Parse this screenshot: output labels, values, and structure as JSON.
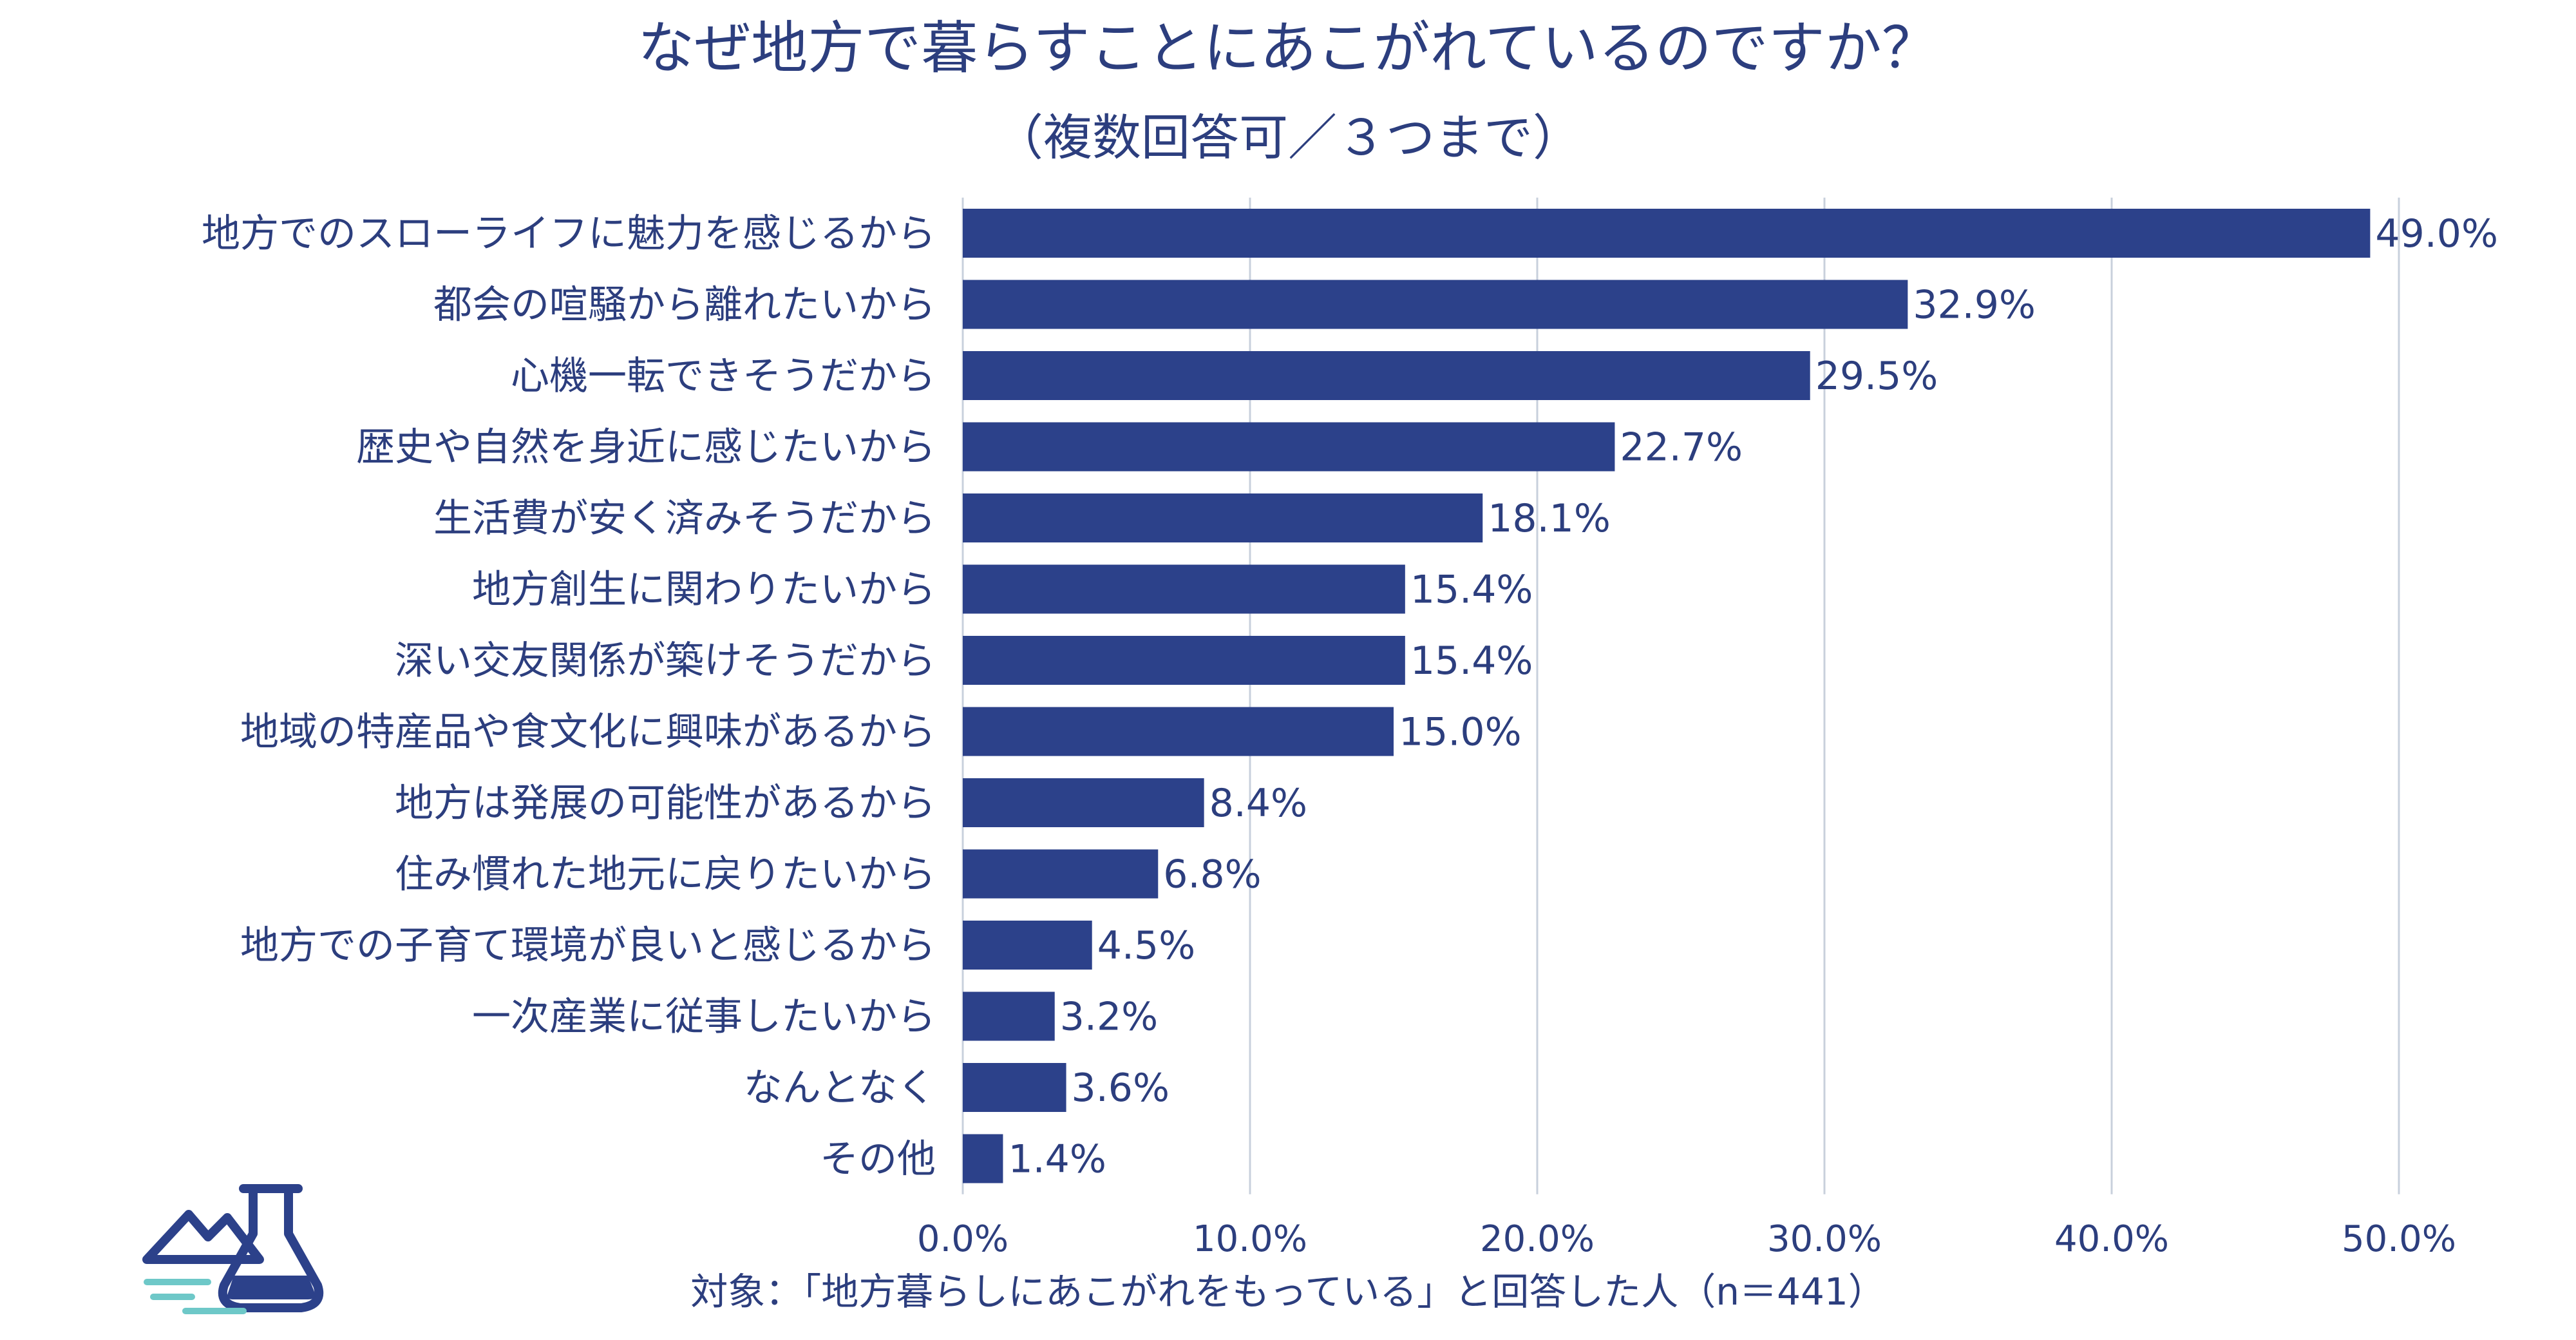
{
  "chart_data": {
    "type": "bar",
    "orientation": "horizontal",
    "title": "なぜ地方で暮らすことにあこがれているのですか？",
    "subtitle": "（複数回答可／３つまで）",
    "categories": [
      "地方でのスローライフに魅力を感じるから",
      "都会の喧騒から離れたいから",
      "心機一転できそうだから",
      "歴史や自然を身近に感じたいから",
      "生活費が安く済みそうだから",
      "地方創生に関わりたいから",
      "深い交友関係が築けそうだから",
      "地域の特産品や食文化に興味があるから",
      "地方は発展の可能性があるから",
      "住み慣れた地元に戻りたいから",
      "地方での子育て環境が良いと感じるから",
      "一次産業に従事したいから",
      "なんとなく",
      "その他"
    ],
    "values": [
      49.0,
      32.9,
      29.5,
      22.7,
      18.1,
      15.4,
      15.4,
      15.0,
      8.4,
      6.8,
      4.5,
      3.2,
      3.6,
      1.4
    ],
    "value_labels": [
      "49.0%",
      "32.9%",
      "29.5%",
      "22.7%",
      "18.1%",
      "15.4%",
      "15.4%",
      "15.0%",
      "8.4%",
      "6.8%",
      "4.5%",
      "3.2%",
      "3.6%",
      "1.4%"
    ],
    "xlim": [
      0,
      50
    ],
    "xticks": [
      0,
      10,
      20,
      30,
      40,
      50
    ],
    "xtick_labels": [
      "0.0%",
      "10.0%",
      "20.0%",
      "30.0%",
      "40.0%",
      "50.0%"
    ],
    "grid": true,
    "xlabel": "",
    "ylabel": "",
    "footnote": "対象：「地方暮らしにあこがれをもっている」と回答した人（n＝441）",
    "bar_color": "#2c418a",
    "text_color": "#2c3e7e",
    "grid_color": "#c8d0dc"
  },
  "logo": {
    "icon": "flask-mountain-icon",
    "color": "#2c418a",
    "accent": "#6ec8c8"
  }
}
